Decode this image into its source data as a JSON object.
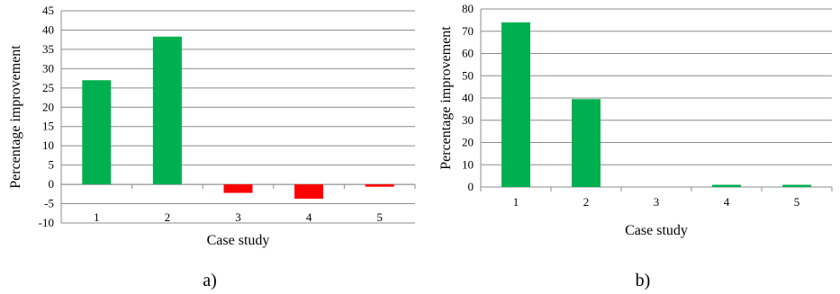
{
  "chart_data": [
    {
      "type": "bar",
      "panel_label": "a)",
      "categories": [
        "1",
        "2",
        "3",
        "4",
        "5"
      ],
      "values": [
        27,
        38.3,
        -2.2,
        -3.7,
        -0.6
      ],
      "xlabel": "Case study",
      "ylabel": "Percentage improvement",
      "ylim": [
        -10,
        45
      ],
      "yticks": [
        "45",
        "40",
        "35",
        "30",
        "25",
        "20",
        "15",
        "10",
        "5",
        "0",
        "-5",
        "-10"
      ],
      "grid": true,
      "colors": {
        "positive": "#00b050",
        "negative": "#ff0000"
      }
    },
    {
      "type": "bar",
      "panel_label": "b)",
      "categories": [
        "1",
        "2",
        "3",
        "4",
        "5"
      ],
      "values": [
        74,
        39.5,
        0,
        1,
        1
      ],
      "xlabel": "Case study",
      "ylabel": "Percentage improvement",
      "ylim": [
        0,
        80
      ],
      "yticks": [
        "80",
        "70",
        "60",
        "50",
        "40",
        "30",
        "20",
        "10",
        "0"
      ],
      "grid": true,
      "colors": {
        "positive": "#00b050",
        "negative": "#ff0000"
      }
    }
  ]
}
